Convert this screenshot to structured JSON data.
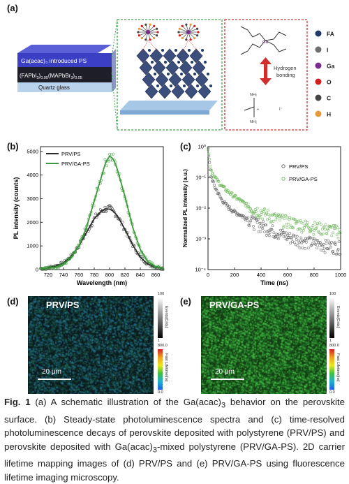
{
  "panel_labels": {
    "a": "(a)",
    "b": "(b)",
    "c": "(c)",
    "d": "(d)",
    "e": "(e)"
  },
  "schematic": {
    "layers": {
      "top": "Ga(acac)₃ introduced PS",
      "middle_main": "(FAPbI",
      "middle_sub1": "3",
      "middle_mid": ")",
      "middle_sub2": "0.95",
      "middle_mid2": "(MAPbBr",
      "middle_sub3": "3",
      "middle_mid3": ")",
      "middle_sub4": "0.05",
      "bottom": "Quartz glass"
    },
    "bond_label_1": "Hydrogen",
    "bond_label_2": "bonding",
    "molecule_labels": {
      "ga": "Ga",
      "nh2_top": "NH₂",
      "nh2_bottom": "NH₂",
      "plus": "+",
      "iodide": "I⁻"
    },
    "legend": [
      {
        "label": "FA",
        "color": "#1f3a68"
      },
      {
        "label": "I",
        "color": "#6d6d6d"
      },
      {
        "label": "Ga",
        "color": "#7a2c8e"
      },
      {
        "label": "O",
        "color": "#d21f1f"
      },
      {
        "label": "C",
        "color": "#444444"
      },
      {
        "label": "H",
        "color": "#e79a3a"
      }
    ]
  },
  "chart_data": [
    {
      "type": "scatter",
      "panel": "(b)",
      "xlabel": "Wavelength (nm)",
      "ylabel": "PL intensity (counts)",
      "xlim": [
        710,
        870
      ],
      "ylim": [
        0,
        5200
      ],
      "xticks": [
        720,
        740,
        760,
        780,
        800,
        820,
        840,
        860
      ],
      "yticks": [
        0,
        1000,
        2000,
        3000,
        4000,
        5000
      ],
      "legend_position": "top-left",
      "series": [
        {
          "name": "PRV/PS",
          "color": "#2a2a2a",
          "x": [
            720,
            730,
            740,
            750,
            760,
            770,
            780,
            790,
            795,
            800,
            805,
            810,
            820,
            830,
            840,
            850,
            860,
            870
          ],
          "y": [
            90,
            150,
            280,
            560,
            1000,
            1580,
            2150,
            2500,
            2570,
            2560,
            2470,
            2280,
            1700,
            1050,
            520,
            230,
            100,
            50
          ]
        },
        {
          "name": "PRV/GA-PS",
          "color": "#3a9a3a",
          "x": [
            720,
            730,
            740,
            750,
            760,
            770,
            780,
            790,
            795,
            800,
            805,
            810,
            820,
            830,
            840,
            850,
            860,
            870
          ],
          "y": [
            60,
            110,
            220,
            500,
            1000,
            1800,
            2900,
            4000,
            4550,
            4800,
            4680,
            4250,
            3100,
            1800,
            850,
            330,
            130,
            60
          ]
        }
      ]
    },
    {
      "type": "scatter",
      "panel": "(c)",
      "xlabel": "Time (ns)",
      "ylabel": "Normalized PL intensity (a.u.)",
      "xlim": [
        0,
        1000
      ],
      "ylim": [
        0.0001,
        1
      ],
      "yscale": "log",
      "xticks": [
        0,
        200,
        400,
        600,
        800,
        1000
      ],
      "ytick_labels": [
        "10⁰",
        "10⁻¹",
        "10⁻²",
        "10⁻³",
        "10⁻⁴"
      ],
      "legend_position": "top-right",
      "series": [
        {
          "name": "PRV/PS",
          "color": "#555555",
          "x": [
            0,
            20,
            50,
            100,
            150,
            200,
            300,
            400,
            500,
            600,
            700,
            800,
            900,
            1000
          ],
          "y": [
            1,
            0.12,
            0.05,
            0.02,
            0.011,
            0.0075,
            0.0045,
            0.0028,
            0.0018,
            0.0012,
            0.0009,
            0.00075,
            0.00062,
            0.00055
          ]
        },
        {
          "name": "PRV/GA-PS",
          "color": "#5fb04a",
          "x": [
            0,
            20,
            50,
            100,
            150,
            200,
            300,
            400,
            500,
            600,
            700,
            800,
            900,
            1000
          ],
          "y": [
            1,
            0.2,
            0.1,
            0.055,
            0.035,
            0.024,
            0.012,
            0.0075,
            0.005,
            0.0038,
            0.003,
            0.0025,
            0.0021,
            0.0018
          ]
        }
      ]
    }
  ],
  "maps": {
    "d": {
      "title": "PRV/PS",
      "scale_bar": "20 μm"
    },
    "e": {
      "title": "PRV/GA-PS",
      "scale_bar": "20 μm"
    },
    "colorbar_top": {
      "max": "100",
      "min": "1",
      "label": "Events[Cnts]"
    },
    "colorbar_bottom": {
      "max": "800.0",
      "min": "0.0",
      "label": "Fast Lifetime[ns]"
    }
  },
  "caption": {
    "fig": "Fig. 1",
    "p1": "  (a) A schematic illustration of the Ga(acac)",
    "sub1": "3",
    "p2": " behavior on the perovskite surface. (b) Steady-state photoluminescence spectra and (c) time-resolved photoluminescence decays of perovskite deposited with polystyrene (PRV/PS) and perovskite deposited with Ga(acac)",
    "sub2": "3",
    "p3": "-mixed polystyrene (PRV/GA-PS). 2D carrier lifetime mapping images of (d) PRV/PS and (e) PRV/GA-PS using fluorescence lifetime imaging microscopy."
  }
}
